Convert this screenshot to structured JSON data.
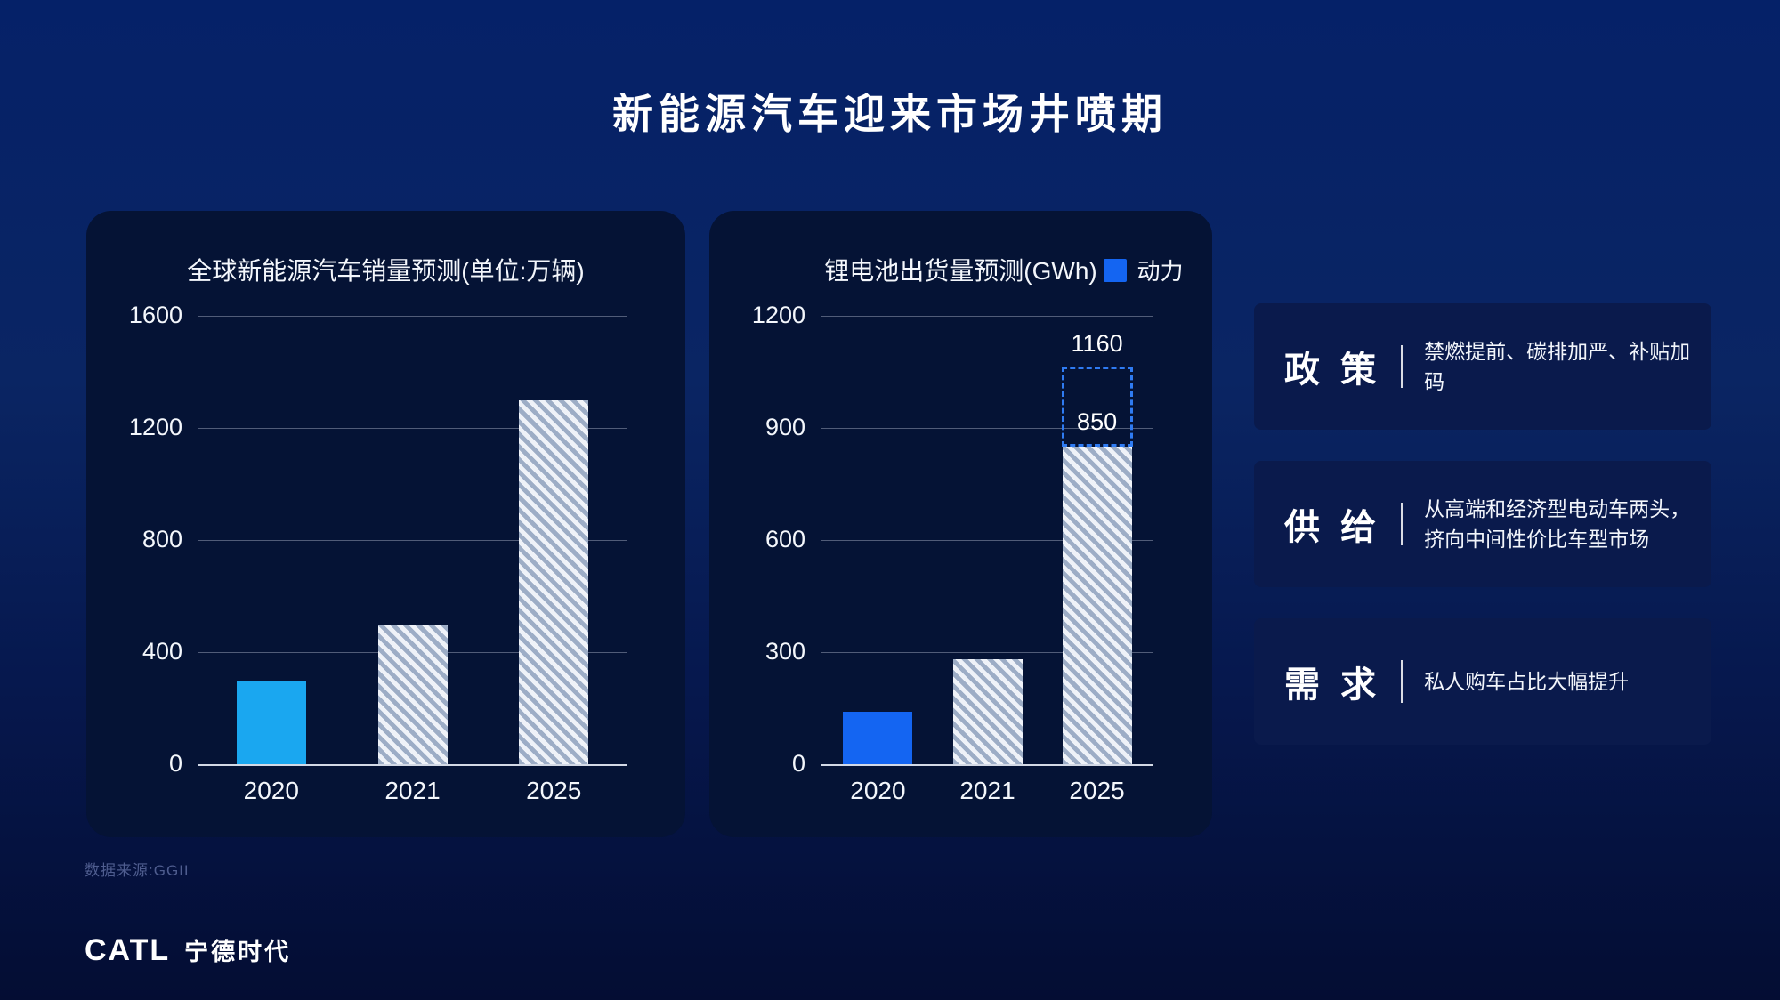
{
  "page": {
    "title": "新能源汽车迎来市场井喷期",
    "source_note": "数据来源:GGII",
    "logo": {
      "brand": "CATL",
      "brand_cn": "宁德时代"
    }
  },
  "colors": {
    "background_top": "#052168",
    "background_bottom": "#040d33",
    "card_bg": "#051335",
    "factor_box_bg": "#0a1a4c",
    "solid_bar_left": "#1aa7f0",
    "solid_bar_right": "#1465f2",
    "hatch_light": "#eff2f8",
    "hatch_dark": "#9dadc6",
    "dashed_projection": "#2f7bf2"
  },
  "chart_data": [
    {
      "type": "bar",
      "title": "全球新能源汽车销量预测(单位:万辆)",
      "categories": [
        "2020",
        "2021",
        "2025"
      ],
      "values": [
        300,
        500,
        1300
      ],
      "yticks": [
        0,
        400,
        800,
        1200,
        1600
      ],
      "ylim": [
        0,
        1600
      ],
      "grid": true,
      "bar_styles": [
        "solid",
        "hatched",
        "hatched"
      ],
      "solid_color": "#1aa7f0"
    },
    {
      "type": "bar",
      "title": "锂电池出货量预测(GWh)",
      "legend": [
        {
          "label": "动力",
          "color": "#1465f2"
        }
      ],
      "categories": [
        "2020",
        "2021",
        "2025"
      ],
      "values": [
        140,
        280,
        850
      ],
      "yticks": [
        0,
        300,
        600,
        900,
        1200
      ],
      "ylim": [
        0,
        1200
      ],
      "grid": true,
      "bar_styles": [
        "solid",
        "hatched",
        "hatched"
      ],
      "solid_color": "#1465f2",
      "projection": {
        "category": "2025",
        "base_value": 850,
        "target_value": 1160,
        "base_label": "850",
        "target_label": "1160"
      }
    }
  ],
  "factors": [
    {
      "heading": "政 策",
      "desc_lines": [
        "禁燃提前、碳排加严、补贴加码"
      ]
    },
    {
      "heading": "供 给",
      "desc_lines": [
        "从高端和经济型电动车两头，",
        "挤向中间性价比车型市场"
      ]
    },
    {
      "heading": "需 求",
      "desc_lines": [
        "私人购车占比大幅提升"
      ]
    }
  ]
}
